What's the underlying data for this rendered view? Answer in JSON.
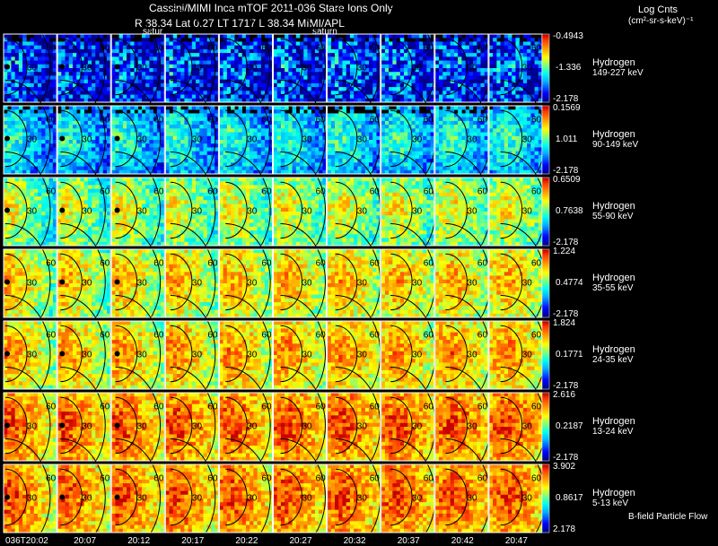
{
  "header": {
    "line1": "Cassini/MIMI Inca mTOF  2011-036    Stare    Ions Only",
    "line2": "R            38.34  Lat 0.27  LT 1717  L            38.34    MIMI/APL",
    "marker_left": "satur",
    "marker_right": "saturn",
    "units_line1": "Log Cnts",
    "units_line2": "(cm²-sr-s-keV)⁻¹"
  },
  "footer": {
    "note": "B-field Particle Flow"
  },
  "chart_data": {
    "type": "heatmap",
    "title": "Cassini/MIMI Inca mTOF  2011-036    Stare    Ions Only",
    "x_time_labels": [
      "036T20:02",
      "20:07",
      "20:12",
      "20:17",
      "20:22",
      "20:27",
      "20:32",
      "20:37",
      "20:42",
      "20:47"
    ],
    "contour_labels": [
      "30",
      "60"
    ],
    "rows": [
      {
        "species": "Hydrogen",
        "energy": "149-227 keV",
        "cbar_max": "-0.4943",
        "cbar_mid": "-1.336",
        "cbar_min": "-2.178",
        "level": 0.2
      },
      {
        "species": "Hydrogen",
        "energy": "90-149 keV",
        "cbar_max": "0.1569",
        "cbar_mid": "1.011",
        "cbar_min": "-2.178",
        "level": 0.4
      },
      {
        "species": "Hydrogen",
        "energy": "55-90 keV",
        "cbar_max": "0.6509",
        "cbar_mid": "0.7638",
        "cbar_min": "-2.178",
        "level": 0.62
      },
      {
        "species": "Hydrogen",
        "energy": "35-55 keV",
        "cbar_max": "1.224",
        "cbar_mid": "0.4774",
        "cbar_min": "-2.178",
        "level": 0.72
      },
      {
        "species": "Hydrogen",
        "energy": "24-35 keV",
        "cbar_max": "1.824",
        "cbar_mid": "0.1771",
        "cbar_min": "-2.178",
        "level": 0.76
      },
      {
        "species": "Hydrogen",
        "energy": "13-24 keV",
        "cbar_max": "2.616",
        "cbar_mid": "0.2187",
        "cbar_min": "-2.178",
        "level": 0.85
      },
      {
        "species": "Hydrogen",
        "energy": "5-13 keV",
        "cbar_max": "3.902",
        "cbar_mid": "0.8617",
        "cbar_min": "2.178",
        "level": 0.85
      }
    ]
  }
}
